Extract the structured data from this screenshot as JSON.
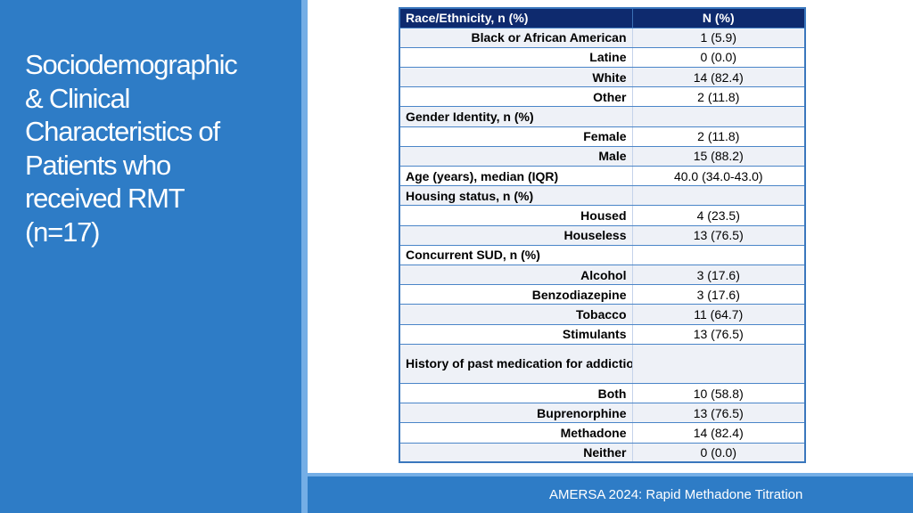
{
  "slide": {
    "title_lines": [
      "Sociodemographic",
      "& Clinical",
      "Characteristics of",
      "Patients who",
      "received RMT",
      "(n=17)"
    ],
    "footer": "AMERSA 2024: Rapid Methadone Titration"
  },
  "table": {
    "header": {
      "label": "Race/Ethnicity, n (%)",
      "value": "N (%)"
    },
    "rows": [
      {
        "label": "Black or African American",
        "value": "1 (5.9)"
      },
      {
        "label": "Latine",
        "value": "0 (0.0)"
      },
      {
        "label": "White",
        "value": "14 (82.4)"
      },
      {
        "label": "Other",
        "value": "2 (11.8)"
      },
      {
        "label": "Gender Identity, n (%)",
        "value": ""
      },
      {
        "label": "Female",
        "value": "2 (11.8)"
      },
      {
        "label": "Male",
        "value": "15 (88.2)"
      },
      {
        "label": "Age (years), median (IQR)",
        "value": "40.0 (34.0-43.0)"
      },
      {
        "label": "Housing status, n (%)",
        "value": ""
      },
      {
        "label": "Housed",
        "value": "4 (23.5)"
      },
      {
        "label": "Houseless",
        "value": "13 (76.5)"
      },
      {
        "label": "Concurrent SUD, n (%)",
        "value": ""
      },
      {
        "label": "Alcohol",
        "value": "3 (17.6)"
      },
      {
        "label": "Benzodiazepine",
        "value": "3 (17.6)"
      },
      {
        "label": "Tobacco",
        "value": "11 (64.7)"
      },
      {
        "label": "Stimulants",
        "value": "13 (76.5)"
      },
      {
        "label": "History of past medication for addiction treatment, n (%)",
        "value": ""
      },
      {
        "label": "Both",
        "value": "10 (58.8)"
      },
      {
        "label": "Buprenorphine",
        "value": "13 (76.5)"
      },
      {
        "label": "Methadone",
        "value": "14 (82.4)"
      },
      {
        "label": "Neither",
        "value": "0 (0.0)"
      }
    ]
  }
}
